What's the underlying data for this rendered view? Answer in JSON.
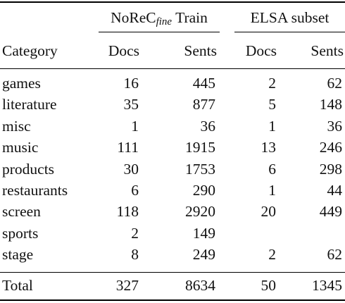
{
  "header": {
    "group1_main": "NoReC",
    "group1_sub": "fine",
    "group1_suffix": " Train",
    "group2": "ELSA subset",
    "category": "Category",
    "docs": "Docs",
    "sents": "Sents"
  },
  "rows": [
    {
      "category": "games",
      "norec_docs": "16",
      "norec_sents": "445",
      "elsa_docs": "2",
      "elsa_sents": "62"
    },
    {
      "category": "literature",
      "norec_docs": "35",
      "norec_sents": "877",
      "elsa_docs": "5",
      "elsa_sents": "148"
    },
    {
      "category": "misc",
      "norec_docs": "1",
      "norec_sents": "36",
      "elsa_docs": "1",
      "elsa_sents": "36"
    },
    {
      "category": "music",
      "norec_docs": "111",
      "norec_sents": "1915",
      "elsa_docs": "13",
      "elsa_sents": "246"
    },
    {
      "category": "products",
      "norec_docs": "30",
      "norec_sents": "1753",
      "elsa_docs": "6",
      "elsa_sents": "298"
    },
    {
      "category": "restaurants",
      "norec_docs": "6",
      "norec_sents": "290",
      "elsa_docs": "1",
      "elsa_sents": "44"
    },
    {
      "category": "screen",
      "norec_docs": "118",
      "norec_sents": "2920",
      "elsa_docs": "20",
      "elsa_sents": "449"
    },
    {
      "category": "sports",
      "norec_docs": "2",
      "norec_sents": "149",
      "elsa_docs": "",
      "elsa_sents": ""
    },
    {
      "category": "stage",
      "norec_docs": "8",
      "norec_sents": "249",
      "elsa_docs": "2",
      "elsa_sents": "62"
    }
  ],
  "total": {
    "category": "Total",
    "norec_docs": "327",
    "norec_sents": "8634",
    "elsa_docs": "50",
    "elsa_sents": "1345"
  }
}
